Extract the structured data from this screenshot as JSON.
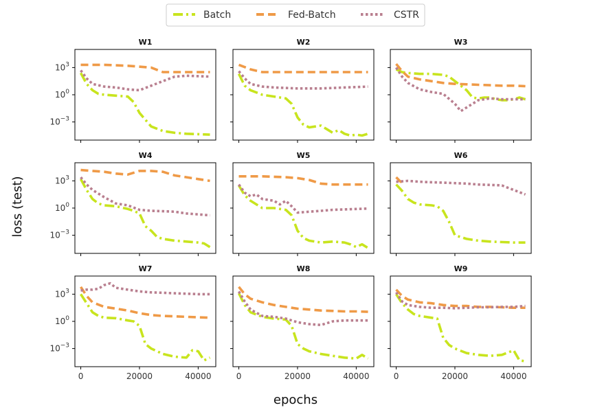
{
  "chart_data": {
    "type": "line",
    "xlabel": "epochs",
    "ylabel": "loss (test)",
    "yscale": "log",
    "xlim": [
      -2000,
      46000
    ],
    "xticks": [
      0,
      20000,
      40000
    ],
    "xtick_labels": [
      "0",
      "20000",
      "40000"
    ],
    "ylim_log10": [
      -5.0,
      5.0
    ],
    "ytick_log10": [
      3,
      0,
      -3
    ],
    "legend_position": "top-center",
    "series_styles": [
      {
        "name": "Batch",
        "color": "#c8e41e",
        "dash": "14 5 3 5"
      },
      {
        "name": "Fed-Batch",
        "color": "#ef9a47",
        "dash": "11 6"
      },
      {
        "name": "CSTR",
        "color": "#b97f8f",
        "dash": "3.5 3.5"
      }
    ],
    "panels": [
      {
        "title": "W1",
        "series": [
          {
            "name": "Batch",
            "x": [
              0,
              2000,
              4000,
              6000,
              8000,
              12000,
              16000,
              18000,
              20000,
              24000,
              28000,
              32000,
              36000,
              40000,
              44000
            ],
            "log10_y": [
              2.4,
              1.2,
              0.5,
              0.1,
              0.0,
              -0.1,
              -0.2,
              -0.8,
              -2.0,
              -3.5,
              -4.0,
              -4.2,
              -4.3,
              -4.35,
              -4.4
            ]
          },
          {
            "name": "Fed-Batch",
            "x": [
              0,
              8000,
              16000,
              24000,
              28000,
              36000,
              44000
            ],
            "log10_y": [
              3.3,
              3.3,
              3.2,
              3.0,
              2.5,
              2.5,
              2.5
            ]
          },
          {
            "name": "CSTR",
            "x": [
              0,
              2000,
              4000,
              8000,
              12000,
              16000,
              20000,
              24000,
              28000,
              32000,
              36000,
              40000,
              44000
            ],
            "log10_y": [
              2.7,
              1.8,
              1.2,
              0.9,
              0.8,
              0.6,
              0.5,
              1.0,
              1.5,
              2.0,
              2.1,
              2.05,
              2.0
            ]
          }
        ]
      },
      {
        "title": "W2",
        "series": [
          {
            "name": "Batch",
            "x": [
              0,
              2000,
              4000,
              8000,
              12000,
              16000,
              18000,
              20000,
              22000,
              24000,
              26000,
              28000,
              30000,
              32000,
              34000,
              36000,
              38000,
              40000,
              42000,
              44000
            ],
            "log10_y": [
              2.3,
              1.0,
              0.5,
              0.0,
              -0.2,
              -0.4,
              -1.0,
              -2.5,
              -3.3,
              -3.6,
              -3.5,
              -3.4,
              -3.8,
              -4.2,
              -3.9,
              -4.3,
              -4.5,
              -4.4,
              -4.5,
              -4.3
            ]
          },
          {
            "name": "Fed-Batch",
            "x": [
              0,
              4000,
              8000,
              16000,
              24000,
              32000,
              40000,
              44000
            ],
            "log10_y": [
              3.3,
              2.8,
              2.5,
              2.5,
              2.5,
              2.5,
              2.5,
              2.5
            ]
          },
          {
            "name": "CSTR",
            "x": [
              0,
              2000,
              4000,
              8000,
              12000,
              20000,
              28000,
              36000,
              44000
            ],
            "log10_y": [
              2.6,
              1.8,
              1.2,
              0.9,
              0.8,
              0.7,
              0.7,
              0.8,
              0.9
            ]
          }
        ]
      },
      {
        "title": "W3",
        "series": [
          {
            "name": "Batch",
            "x": [
              0,
              2000,
              4000,
              8000,
              12000,
              16000,
              18000,
              20000,
              22000,
              24000,
              26000,
              28000,
              30000,
              32000,
              34000,
              36000,
              38000,
              40000,
              42000,
              44000
            ],
            "log10_y": [
              2.8,
              2.5,
              2.4,
              2.3,
              2.3,
              2.2,
              2.0,
              1.5,
              1.0,
              0.5,
              -0.3,
              -0.4,
              -0.3,
              -0.3,
              -0.5,
              -0.6,
              -0.6,
              -0.5,
              -0.3,
              -0.5
            ]
          },
          {
            "name": "Fed-Batch",
            "x": [
              0,
              2000,
              4000,
              8000,
              12000,
              16000,
              20000,
              24000,
              28000,
              32000,
              36000,
              40000,
              44000
            ],
            "log10_y": [
              3.4,
              2.6,
              2.0,
              1.7,
              1.5,
              1.3,
              1.2,
              1.15,
              1.1,
              1.05,
              1.0,
              1.0,
              0.95
            ]
          },
          {
            "name": "CSTR",
            "x": [
              0,
              2000,
              4000,
              8000,
              12000,
              16000,
              20000,
              22000,
              24000,
              28000,
              32000,
              36000,
              40000,
              44000
            ],
            "log10_y": [
              3.0,
              2.0,
              1.3,
              0.6,
              0.3,
              0.1,
              -1.0,
              -1.8,
              -1.4,
              -0.6,
              -0.4,
              -0.5,
              -0.5,
              -0.5
            ]
          }
        ]
      },
      {
        "title": "W4",
        "series": [
          {
            "name": "Batch",
            "x": [
              0,
              2000,
              4000,
              6000,
              8000,
              12000,
              16000,
              18000,
              20000,
              22000,
              24000,
              26000,
              28000,
              32000,
              36000,
              40000,
              42000,
              44000
            ],
            "log10_y": [
              3.2,
              2.0,
              1.0,
              0.5,
              0.3,
              0.2,
              -0.1,
              -0.3,
              -0.6,
              -2.0,
              -2.5,
              -3.2,
              -3.4,
              -3.6,
              -3.7,
              -3.8,
              -3.9,
              -4.3
            ]
          },
          {
            "name": "Fed-Batch",
            "x": [
              0,
              4000,
              8000,
              12000,
              16000,
              20000,
              24000,
              28000,
              32000,
              36000,
              40000,
              44000
            ],
            "log10_y": [
              4.2,
              4.1,
              4.0,
              3.8,
              3.7,
              4.1,
              4.1,
              4.0,
              3.6,
              3.4,
              3.2,
              3.0
            ]
          },
          {
            "name": "CSTR",
            "x": [
              0,
              2000,
              4000,
              8000,
              12000,
              16000,
              20000,
              24000,
              28000,
              32000,
              36000,
              40000,
              44000
            ],
            "log10_y": [
              3.4,
              2.6,
              2.0,
              1.2,
              0.5,
              0.3,
              -0.2,
              -0.3,
              -0.35,
              -0.4,
              -0.6,
              -0.7,
              -0.8
            ]
          }
        ]
      },
      {
        "title": "W5",
        "series": [
          {
            "name": "Batch",
            "x": [
              0,
              2000,
              4000,
              8000,
              12000,
              16000,
              18000,
              20000,
              22000,
              24000,
              28000,
              32000,
              36000,
              38000,
              40000,
              42000,
              44000
            ],
            "log10_y": [
              2.5,
              1.4,
              0.8,
              0.0,
              0.0,
              -0.2,
              -0.8,
              -2.5,
              -3.3,
              -3.6,
              -3.8,
              -3.7,
              -3.8,
              -4.0,
              -4.3,
              -4.0,
              -4.4
            ]
          },
          {
            "name": "Fed-Batch",
            "x": [
              0,
              8000,
              16000,
              20000,
              24000,
              28000,
              32000,
              36000,
              40000,
              44000
            ],
            "log10_y": [
              3.5,
              3.5,
              3.4,
              3.3,
              3.1,
              2.7,
              2.6,
              2.6,
              2.6,
              2.6
            ]
          },
          {
            "name": "CSTR",
            "x": [
              0,
              2000,
              4000,
              6000,
              8000,
              12000,
              14000,
              16000,
              18000,
              20000,
              24000,
              28000,
              32000,
              36000,
              40000,
              44000
            ],
            "log10_y": [
              2.6,
              1.7,
              1.3,
              1.5,
              1.0,
              0.8,
              0.4,
              0.8,
              0.2,
              -0.5,
              -0.4,
              -0.3,
              -0.2,
              -0.15,
              -0.1,
              -0.05
            ]
          }
        ]
      },
      {
        "title": "W6",
        "series": [
          {
            "name": "Batch",
            "x": [
              0,
              2000,
              4000,
              6000,
              8000,
              12000,
              14000,
              16000,
              18000,
              20000,
              24000,
              28000,
              32000,
              36000,
              40000,
              44000
            ],
            "log10_y": [
              2.6,
              1.9,
              1.0,
              0.6,
              0.4,
              0.3,
              0.2,
              -0.3,
              -1.5,
              -3.0,
              -3.4,
              -3.6,
              -3.7,
              -3.75,
              -3.8,
              -3.8
            ]
          },
          {
            "name": "Fed-Batch",
            "x": [
              0,
              1500,
              3000
            ],
            "log10_y": [
              3.4,
              2.9,
              2.9
            ]
          },
          {
            "name": "CSTR",
            "x": [
              0,
              4000,
              8000,
              12000,
              16000,
              20000,
              24000,
              28000,
              32000,
              36000,
              40000,
              44000
            ],
            "log10_y": [
              2.9,
              3.0,
              2.9,
              2.85,
              2.8,
              2.75,
              2.7,
              2.6,
              2.55,
              2.5,
              2.0,
              1.5
            ]
          }
        ]
      },
      {
        "title": "W7",
        "series": [
          {
            "name": "Batch",
            "x": [
              0,
              2000,
              4000,
              6000,
              8000,
              12000,
              16000,
              18000,
              20000,
              22000,
              24000,
              28000,
              32000,
              36000,
              38000,
              40000,
              42000,
              44000
            ],
            "log10_y": [
              3.0,
              2.0,
              1.0,
              0.6,
              0.4,
              0.35,
              0.1,
              0.0,
              -0.5,
              -2.5,
              -3.0,
              -3.6,
              -3.9,
              -4.0,
              -3.2,
              -3.3,
              -4.3,
              -4.0
            ]
          },
          {
            "name": "Fed-Batch",
            "x": [
              0,
              2000,
              4000,
              8000,
              12000,
              16000,
              20000,
              24000,
              28000,
              32000,
              36000,
              40000,
              44000
            ],
            "log10_y": [
              3.8,
              2.8,
              2.1,
              1.6,
              1.4,
              1.2,
              0.9,
              0.7,
              0.6,
              0.55,
              0.5,
              0.45,
              0.4
            ]
          },
          {
            "name": "CSTR",
            "x": [
              0,
              2000,
              4000,
              6000,
              8000,
              10000,
              12000,
              16000,
              20000,
              24000,
              28000,
              32000,
              36000,
              40000,
              44000
            ],
            "log10_y": [
              3.4,
              3.5,
              3.5,
              3.6,
              4.0,
              4.2,
              3.7,
              3.5,
              3.3,
              3.2,
              3.15,
              3.1,
              3.05,
              3.0,
              3.0
            ]
          }
        ]
      },
      {
        "title": "W8",
        "series": [
          {
            "name": "Batch",
            "x": [
              0,
              2000,
              4000,
              8000,
              12000,
              16000,
              18000,
              20000,
              22000,
              24000,
              28000,
              32000,
              36000,
              40000,
              42000,
              44000
            ],
            "log10_y": [
              3.1,
              1.8,
              1.0,
              0.5,
              0.3,
              0.2,
              -0.5,
              -2.5,
              -3.0,
              -3.3,
              -3.6,
              -3.8,
              -4.0,
              -4.1,
              -3.7,
              -4.1
            ]
          },
          {
            "name": "Fed-Batch",
            "x": [
              0,
              2000,
              4000,
              8000,
              12000,
              16000,
              20000,
              24000,
              28000,
              32000,
              36000,
              40000,
              44000
            ],
            "log10_y": [
              3.8,
              3.0,
              2.5,
              2.1,
              1.8,
              1.6,
              1.4,
              1.3,
              1.2,
              1.15,
              1.1,
              1.1,
              1.05
            ]
          },
          {
            "name": "CSTR",
            "x": [
              0,
              2000,
              4000,
              8000,
              12000,
              16000,
              20000,
              24000,
              28000,
              32000,
              36000,
              40000,
              44000
            ],
            "log10_y": [
              3.3,
              2.2,
              1.3,
              0.6,
              0.5,
              0.3,
              -0.1,
              -0.3,
              -0.4,
              0.0,
              0.1,
              0.1,
              0.1
            ]
          }
        ]
      },
      {
        "title": "W9",
        "series": [
          {
            "name": "Batch",
            "x": [
              0,
              2000,
              4000,
              6000,
              8000,
              12000,
              14000,
              16000,
              18000,
              20000,
              24000,
              28000,
              32000,
              36000,
              40000,
              42000,
              44000
            ],
            "log10_y": [
              3.0,
              2.0,
              1.3,
              0.8,
              0.6,
              0.4,
              0.3,
              -1.8,
              -2.6,
              -3.0,
              -3.5,
              -3.7,
              -3.8,
              -3.7,
              -3.2,
              -4.3,
              -4.4
            ]
          },
          {
            "name": "Fed-Batch",
            "x": [
              0,
              2000,
              4000,
              8000,
              12000,
              16000,
              20000,
              24000,
              28000,
              32000,
              36000,
              40000,
              44000
            ],
            "log10_y": [
              3.5,
              2.8,
              2.4,
              2.1,
              2.0,
              1.8,
              1.7,
              1.7,
              1.6,
              1.6,
              1.55,
              1.5,
              1.5
            ]
          },
          {
            "name": "CSTR",
            "x": [
              0,
              2000,
              4000,
              8000,
              12000,
              16000,
              20000,
              24000,
              28000,
              32000,
              36000,
              40000,
              44000
            ],
            "log10_y": [
              3.2,
              2.2,
              1.8,
              1.6,
              1.5,
              1.5,
              1.45,
              1.5,
              1.55,
              1.55,
              1.6,
              1.6,
              1.7
            ]
          }
        ]
      }
    ]
  }
}
